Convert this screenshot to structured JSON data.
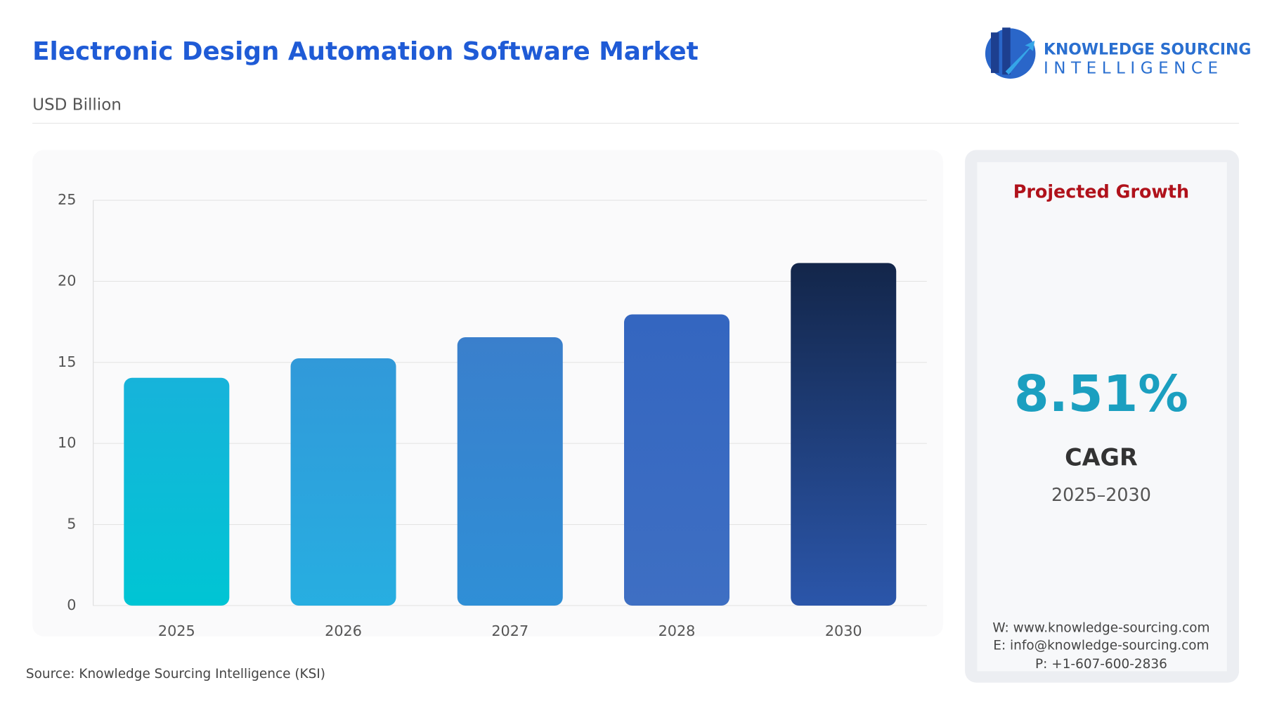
{
  "header": {
    "title": "Electronic Design Automation Software Market",
    "subtitle": "USD Billion",
    "logo": {
      "line1": "KNOWLEDGE SOURCING",
      "line2": "INTELLIGENCE"
    }
  },
  "chart_data": {
    "type": "bar",
    "categories": [
      "2025",
      "2026",
      "2027",
      "2028",
      "2030"
    ],
    "values": [
      14.05,
      15.25,
      16.55,
      17.96,
      21.13
    ],
    "colors": [
      [
        "#17b3da",
        "#00c5d4"
      ],
      [
        "#3199d9",
        "#27aee1"
      ],
      [
        "#3a7fcc",
        "#2f8fd6"
      ],
      [
        "#3466c0",
        "#3e6fc3"
      ],
      [
        "#13264a",
        "#2b56aa"
      ]
    ],
    "ylim": [
      0,
      25
    ],
    "yticks": [
      0,
      5,
      10,
      15,
      20,
      25
    ],
    "grid": true
  },
  "panel": {
    "heading": "Projected Growth",
    "cagr_value": "8.51%",
    "cagr_label": "CAGR",
    "period": "2025–2030",
    "contacts": [
      "W: www.knowledge-sourcing.com",
      "E: info@knowledge-sourcing.com",
      "P: +1-607-600-2836"
    ]
  },
  "source": "Source: Knowledge Sourcing Intelligence (KSI)"
}
